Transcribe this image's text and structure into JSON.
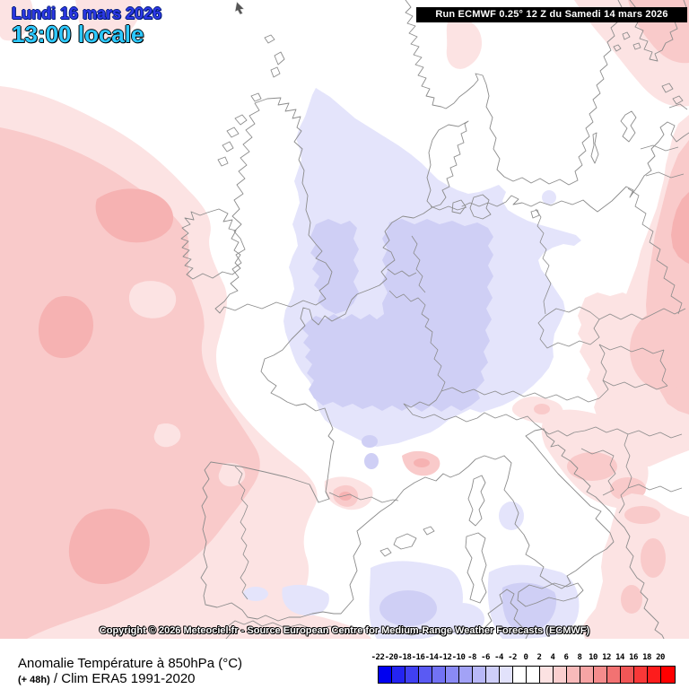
{
  "header": {
    "date_line": "Lundi 16 mars 2026",
    "time_line": "13:00 locale",
    "run_line": "Run ECMWF 0.25° 12 Z du Samedi 14 mars 2026"
  },
  "copyright": "Copyright © 2026 Meteociel.fr - Source European Centre for Medium-Range Weather Forecasts (ECMWF)",
  "footer": {
    "title": "Anomalie Température à 850hPa (°C)",
    "lead_time": "(+ 48h)",
    "climatology": " / Clim ERA5 1991-2020"
  },
  "colorbar": {
    "tick_labels": [
      "-22",
      "-20",
      "-18",
      "-16",
      "-14",
      "-12",
      "-10",
      "-8",
      "-6",
      "-4",
      "-2",
      "0",
      "2",
      "4",
      "6",
      "8",
      "10",
      "12",
      "14",
      "16",
      "18",
      "20"
    ],
    "cell_colors": [
      "#0000f0",
      "#2424f1",
      "#4040f2",
      "#5a5af3",
      "#7272f4",
      "#8a8af5",
      "#a2a2f6",
      "#b8b8f8",
      "#cecef9",
      "#e2e2fb",
      "#ffffff",
      "#ffffff",
      "#fce2e2",
      "#facfcf",
      "#f8baba",
      "#f6a4a4",
      "#f48c8c",
      "#f27272",
      "#f05656",
      "#f93838",
      "#fd1c1c",
      "#ff0000"
    ]
  },
  "map": {
    "region": "Europe",
    "palette": {
      "anomaly_plus_2_4": "#fce3e3",
      "anomaly_plus_4_6": "#f9caca",
      "anomaly_plus_6_8": "#f6b2b2",
      "anomaly_minus_2_4": "#e4e4fb",
      "anomaly_minus_4_6": "#cfcff5",
      "coastline": "#8c8c8c",
      "sea": "#ffffff"
    }
  }
}
